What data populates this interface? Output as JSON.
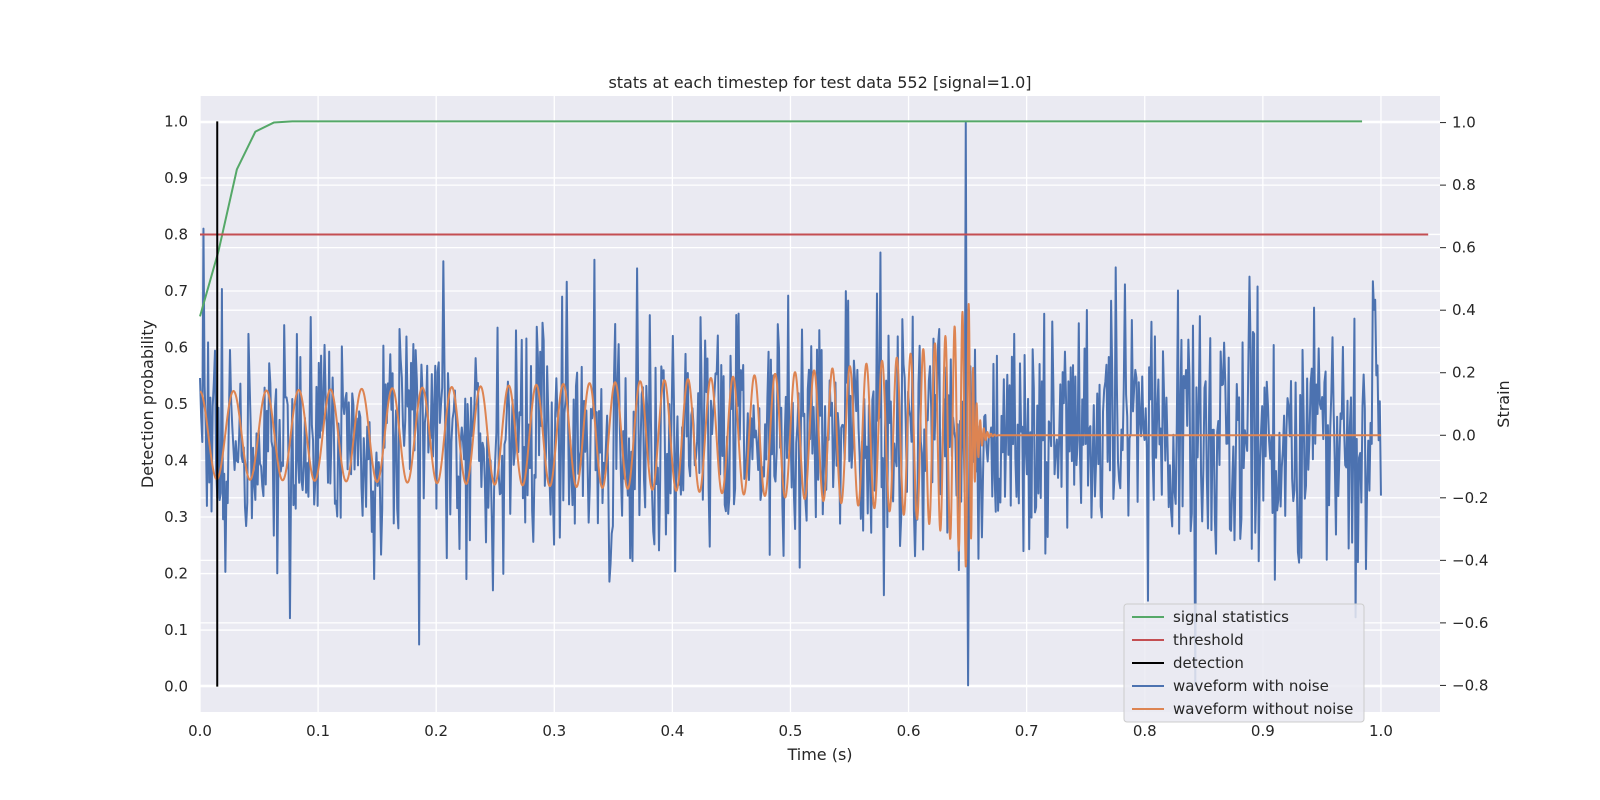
{
  "chart_data": {
    "type": "line",
    "title": "stats at each timestep for test data 552 [signal=1.0]",
    "xlabel": "Time (s)",
    "ylabel": "Detection probability",
    "y2label": "Strain",
    "xlim": [
      0.0,
      1.05
    ],
    "ylim": [
      -0.045,
      1.045
    ],
    "y2lim": [
      -0.885,
      1.085
    ],
    "xticks": [
      "0.0",
      "0.1",
      "0.2",
      "0.3",
      "0.4",
      "0.5",
      "0.6",
      "0.7",
      "0.8",
      "0.9",
      "1.0"
    ],
    "yticks": [
      "0.0",
      "0.1",
      "0.2",
      "0.3",
      "0.4",
      "0.5",
      "0.6",
      "0.7",
      "0.8",
      "0.9",
      "1.0"
    ],
    "y2ticks": [
      "−0.8",
      "−0.6",
      "−0.4",
      "−0.2",
      "0.0",
      "0.2",
      "0.4",
      "0.6",
      "0.8",
      "1.0"
    ],
    "grid": true,
    "legend_position": "lower-right",
    "legend": [
      "signal statistics",
      "threshold",
      "detection",
      "waveform with noise",
      "waveform without noise"
    ],
    "colors": {
      "signal_statistics": "#55a868",
      "threshold": "#c44e52",
      "detection": "#000000",
      "waveform_noise": "#4c72b0",
      "waveform_clean": "#dd8452",
      "plot_bg": "#eaeaf2",
      "grid": "#ffffff"
    },
    "series": [
      {
        "name": "signal statistics",
        "axis": "left",
        "x": [
          0.0,
          0.0156,
          0.0312,
          0.0469,
          0.0625,
          0.0781,
          0.1,
          0.2,
          0.3,
          0.4,
          0.5,
          0.6,
          0.7,
          0.8,
          0.9,
          0.984
        ],
        "y": [
          0.655,
          0.77,
          0.915,
          0.982,
          0.998,
          1.0,
          1.0,
          1.0,
          1.0,
          1.0,
          1.0,
          1.0,
          1.0,
          1.0,
          1.0,
          1.0
        ]
      },
      {
        "name": "threshold",
        "axis": "left",
        "x": [
          0.0,
          1.04
        ],
        "y": [
          0.8,
          0.8
        ]
      },
      {
        "name": "detection",
        "axis": "left",
        "x": [
          0.0146,
          0.0146
        ],
        "y": [
          0.0,
          1.0
        ]
      },
      {
        "name": "waveform with noise",
        "axis": "right",
        "x_range": [
          0.0,
          1.0
        ],
        "n_points": 1025,
        "std": 0.2,
        "max": 1.0,
        "min": -0.8
      },
      {
        "name": "waveform without noise",
        "axis": "right",
        "x_range": [
          0.0,
          1.0
        ],
        "amplitude_start": 0.14,
        "amplitude_peak": 0.42,
        "frequency_start_hz": 35,
        "merger_time": 0.652,
        "ringdown_end": 0.672,
        "zero_after": 0.675
      }
    ]
  }
}
